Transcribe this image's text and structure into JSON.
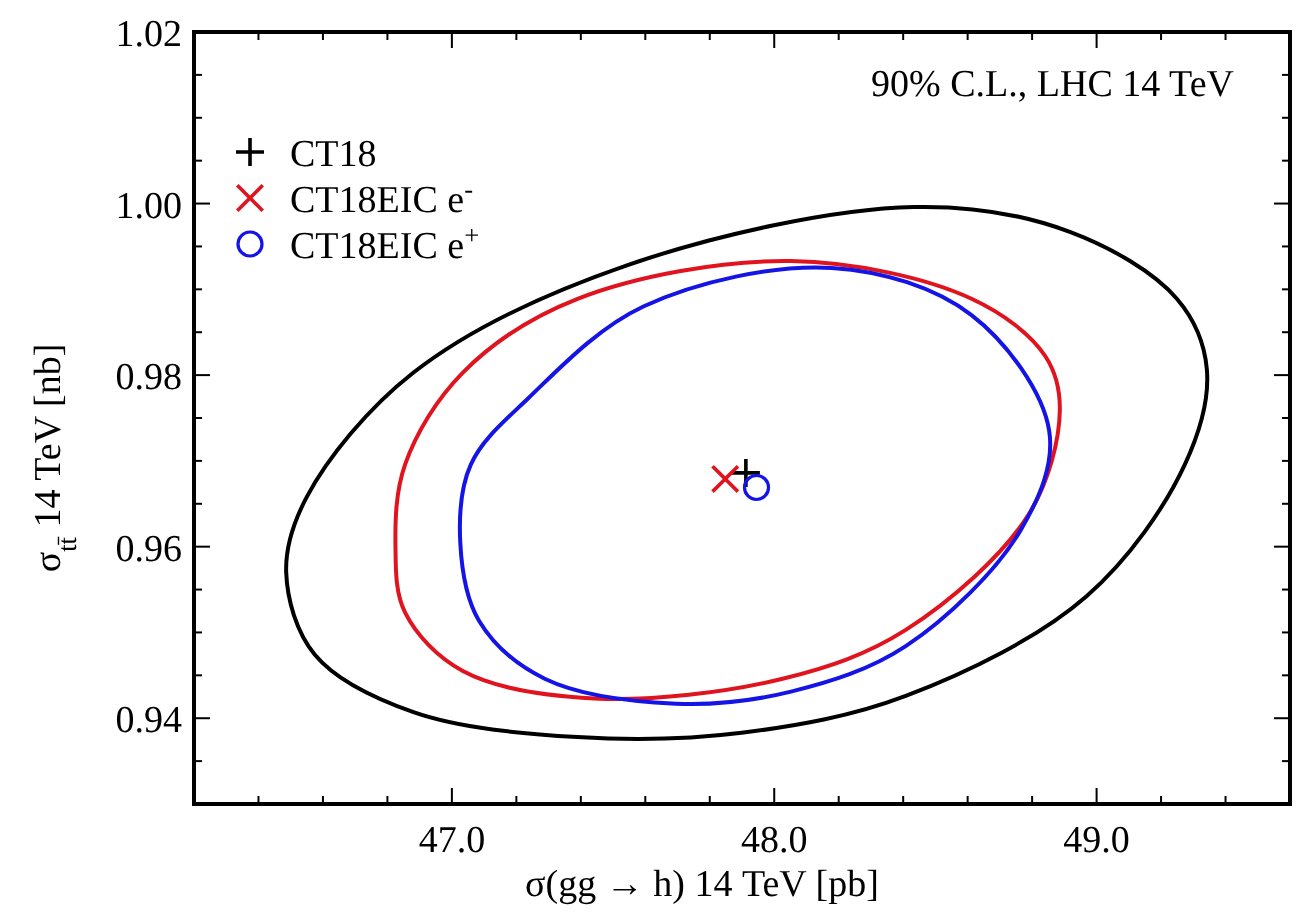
{
  "chart_data": {
    "type": "scatter",
    "xlabel": "σ(gg → h) 14 TeV [pb]",
    "ylabel": "σ$_{tt̄}$ 14 TeV [nb]",
    "annotations": [
      "90% C.L., LHC 14 TeV"
    ],
    "xlim": [
      46.2,
      49.6
    ],
    "ylim": [
      0.93,
      1.02
    ],
    "xticks": [
      {
        "value": 46.4,
        "label": null
      },
      {
        "value": 46.6,
        "label": null
      },
      {
        "value": 46.8,
        "label": null
      },
      {
        "value": 47,
        "label": "47.0"
      },
      {
        "value": 47.2,
        "label": null
      },
      {
        "value": 47.4,
        "label": null
      },
      {
        "value": 47.6,
        "label": null
      },
      {
        "value": 47.8,
        "label": null
      },
      {
        "value": 48,
        "label": "48.0"
      },
      {
        "value": 48.2,
        "label": null
      },
      {
        "value": 48.4,
        "label": null
      },
      {
        "value": 48.6,
        "label": null
      },
      {
        "value": 48.8,
        "label": null
      },
      {
        "value": 49,
        "label": "49.0"
      },
      {
        "value": 49.2,
        "label": null
      },
      {
        "value": 49.4,
        "label": null
      }
    ],
    "yticks": [
      {
        "value": 0.935,
        "label": null
      },
      0.94,
      {
        "value": 0.945,
        "label": null
      },
      {
        "value": 0.95,
        "label": null
      },
      {
        "value": 0.955,
        "label": null
      },
      0.96,
      {
        "value": 0.965,
        "label": null
      },
      {
        "value": 0.97,
        "label": null
      },
      {
        "value": 0.975,
        "label": null
      },
      0.98,
      {
        "value": 0.985,
        "label": null
      },
      {
        "value": 0.99,
        "label": null
      },
      {
        "value": 0.995,
        "label": null
      },
      {
        "value": 1.0,
        "label": "1.00"
      },
      {
        "value": 1.005,
        "label": null
      },
      {
        "value": 1.01,
        "label": null
      },
      {
        "value": 1.015,
        "label": null
      },
      1.02
    ],
    "grid": false,
    "legend": "top left",
    "series": [
      {
        "type": "scatter",
        "name": "CT18",
        "color": "#000000",
        "marker": "cross",
        "x": [
          47.912
        ],
        "values": [
          0.9686
        ]
      },
      {
        "type": "scatter",
        "name": "CT18EIC e$^{-}$",
        "color": "#e0141e",
        "marker": "x",
        "x": [
          47.848
        ],
        "values": [
          0.9679
        ]
      },
      {
        "type": "scatter",
        "name": "CT18EIC e$^{+}$",
        "color": "#1414e6",
        "marker": "circle",
        "x": [
          47.945
        ],
        "values": [
          0.9669
        ]
      }
    ]
  }
}
